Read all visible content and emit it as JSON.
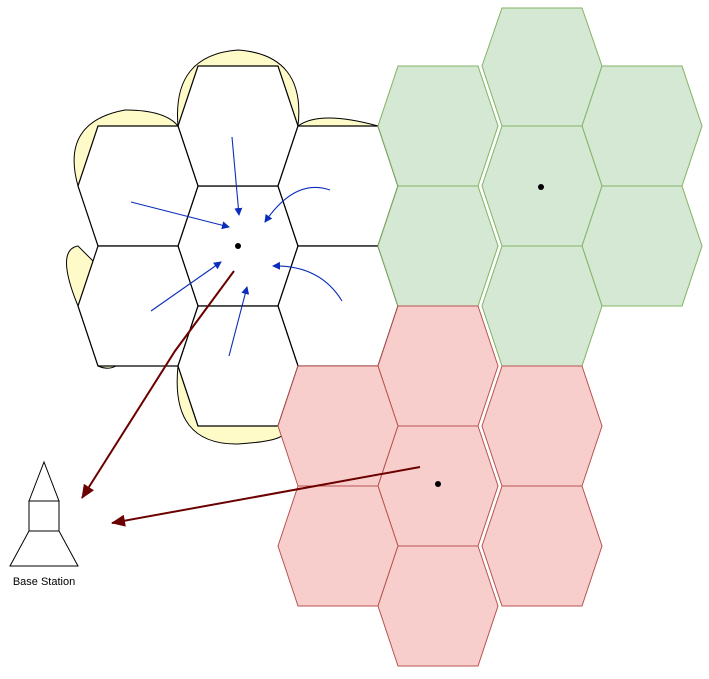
{
  "diagram": {
    "base_station_label": "Base Station"
  },
  "colors": {
    "lobe_fill": "#fefbc9",
    "hex_outline": "#000000",
    "green_fill": "#d5e8d4",
    "green_stroke": "#82b366",
    "red_fill": "#f8cecc",
    "red_stroke": "#b85450",
    "blue_arrow": "#0b2dbb",
    "red_arrow": "#6b0000"
  }
}
